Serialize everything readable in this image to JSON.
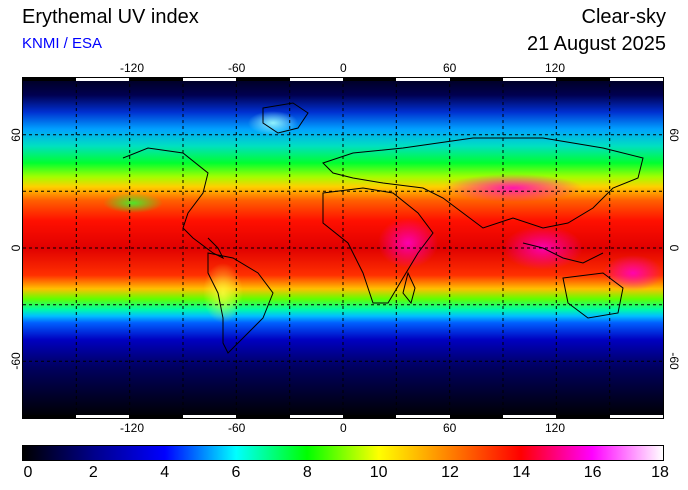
{
  "header": {
    "title": "Erythemal UV index",
    "source": "KNMI / ESA",
    "condition": "Clear-sky",
    "date": "21 August 2025"
  },
  "map": {
    "lon_ticks": [
      "-120",
      "-60",
      "0",
      "60",
      "120"
    ],
    "lat_ticks": [
      "60",
      "0",
      "-60"
    ],
    "lon_range": [
      -180,
      180
    ],
    "lat_range": [
      -90,
      90
    ],
    "grid": "dashed, every 30 degrees"
  },
  "colorbar": {
    "labels": [
      "0",
      "2",
      "4",
      "6",
      "8",
      "10",
      "12",
      "14",
      "16",
      "18"
    ],
    "range": [
      0,
      18
    ],
    "stops": [
      "#000000",
      "#00008b",
      "#0000ff",
      "#00ffff",
      "#00ff00",
      "#ffff00",
      "#ff8000",
      "#ff0000",
      "#ff00ff",
      "#ffffff"
    ]
  }
}
